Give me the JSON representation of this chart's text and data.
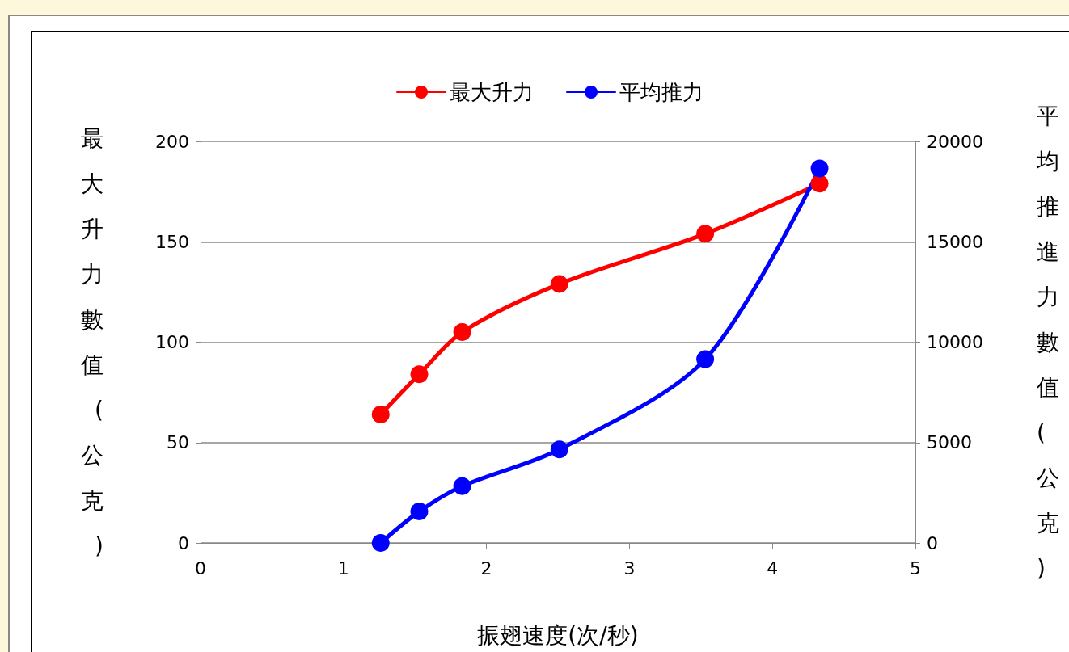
{
  "chart_data": {
    "type": "line",
    "xlabel": "振翅速度(次/秒)",
    "ylabel": "最大升力數值(公克)",
    "y2label": "平均推進力數值(公克)",
    "x": [
      1.26,
      1.53,
      1.83,
      2.51,
      3.53,
      4.33
    ],
    "series": [
      {
        "name": "最大升力",
        "color": "#ff0000",
        "values": [
          64,
          84,
          105,
          129,
          154,
          179
        ]
      },
      {
        "name": "平均推力",
        "color": "#0000ff",
        "axis": "y2",
        "values": [
          0,
          1570,
          2830,
          4660,
          9150,
          18650
        ]
      }
    ],
    "xlim": [
      0,
      5
    ],
    "xticks": [
      0,
      1,
      2,
      3,
      4,
      5
    ],
    "ylim": [
      0,
      200
    ],
    "yticks": [
      0,
      50,
      100,
      150,
      200
    ],
    "y2lim": [
      0,
      20000
    ],
    "y2ticks": [
      0,
      5000,
      10000,
      15000,
      20000
    ],
    "grid": "y",
    "legend": "top",
    "marker": "circle",
    "line_style": "solid"
  }
}
